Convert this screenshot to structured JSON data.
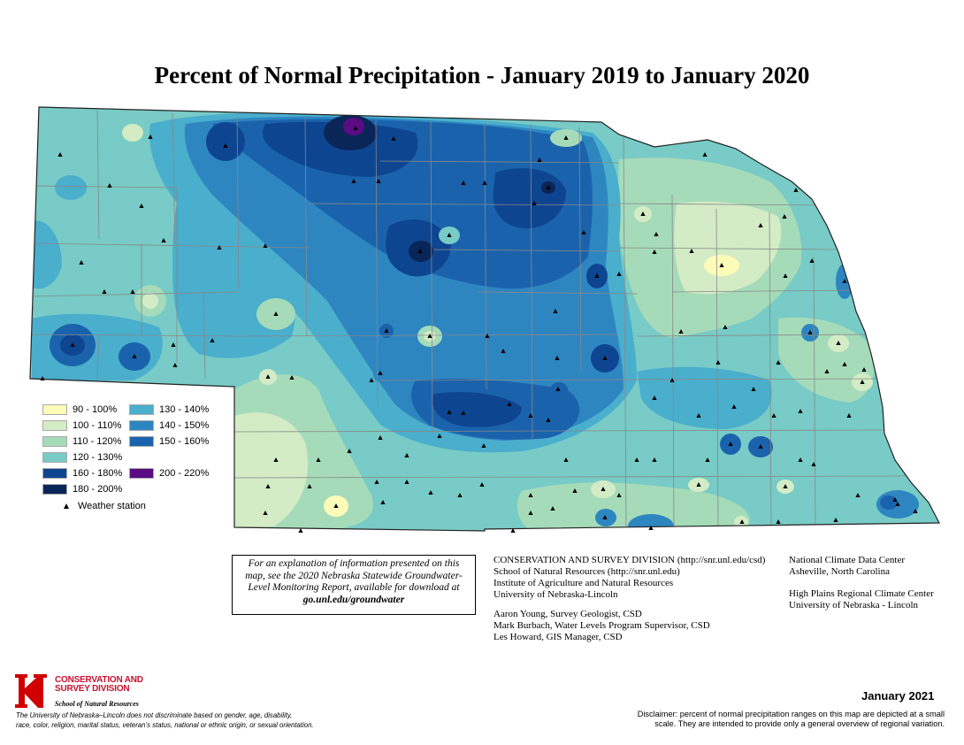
{
  "title": "Percent of Normal Precipitation - January 2019 to January 2020",
  "legend": {
    "items": [
      {
        "label": "90 - 100%",
        "color": "#fdfbb8"
      },
      {
        "label": "100 - 110%",
        "color": "#d3ecc6"
      },
      {
        "label": "110 - 120%",
        "color": "#a6dbba"
      },
      {
        "label": "120 - 130%",
        "color": "#78cbc6"
      },
      {
        "label": "130 - 140%",
        "color": "#4aaecd"
      },
      {
        "label": "140 - 150%",
        "color": "#2e86c1"
      },
      {
        "label": "150 - 160%",
        "color": "#1a63ac"
      },
      {
        "label": "160 - 180%",
        "color": "#0e4591"
      },
      {
        "label": "180 - 200%",
        "color": "#0a2557"
      },
      {
        "label": "200 - 220%",
        "color": "#5b0b84"
      }
    ],
    "station_label": "Weather station"
  },
  "info_box": {
    "line1": "For an explanation of information presented on this",
    "line2": "map, see the 2020 Nebraska Statewide Groundwater-",
    "line3": "Level Monitoring Report, available for download at",
    "url": "go.unl.edu/groundwater"
  },
  "credits": {
    "org1": "CONSERVATION AND SURVEY DIVISION (http://snr.unl.edu/csd)",
    "org2": "School of Natural Resources (http://snr.unl.edu)",
    "org3": "Institute of Agriculture and Natural Resources",
    "org4": "University of Nebraska-Lincoln",
    "person1": "Aaron Young, Survey Geologist, CSD",
    "person2": "Mark Burbach, Water Levels Program Supervisor, CSD",
    "person3": "Les Howard, GIS Manager, CSD",
    "ncdc1": "National Climate Data Center",
    "ncdc2": "Asheville, North Carolina",
    "hprcc1": "High Plains Regional Climate Center",
    "hprcc2": "University of Nebraska - Lincoln"
  },
  "logo": {
    "line1": "CONSERVATION AND",
    "line2": "SURVEY DIVISION",
    "sub": "School of Natural Resources"
  },
  "nondiscrimination": {
    "line1": "The University of Nebraska–Lincoln does not discriminate based on gender, age, disability,",
    "line2": "race, color, religion, marital status, veteran’s status, national or ethnic origin, or sexual orientation."
  },
  "date": "January 2021",
  "disclaimer": {
    "line1": "Disclaimer: percent of normal precipitation ranges on this map are depicted at a small",
    "line2": "scale.  They are intended to provide only a general overview of regional variation."
  }
}
